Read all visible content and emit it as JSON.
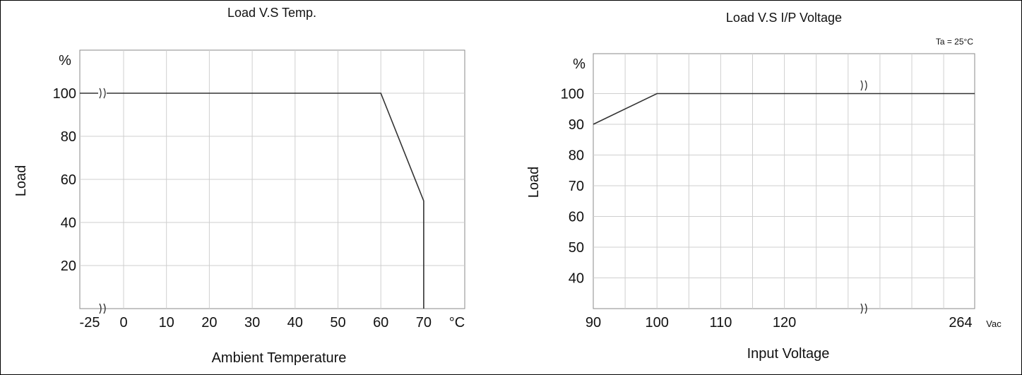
{
  "chart_data": [
    {
      "type": "line",
      "title": "Load V.S Temp.",
      "xlabel": "Ambient Temperature",
      "ylabel": "Load",
      "y_unit": "%",
      "x_unit": "°C",
      "x_ticks": [
        "-25",
        "0",
        "10",
        "20",
        "30",
        "40",
        "50",
        "60",
        "70"
      ],
      "y_ticks": [
        "20",
        "40",
        "60",
        "80",
        "100"
      ],
      "xlim": [
        -5,
        80
      ],
      "ylim": [
        0,
        120
      ],
      "axis_break_x": true,
      "axis_break_y": true,
      "grid": true,
      "series": [
        {
          "x": [
            -25,
            60,
            70,
            70
          ],
          "y": [
            100,
            100,
            50,
            0
          ]
        }
      ]
    },
    {
      "type": "line",
      "title": "Load V.S I/P Voltage",
      "annotation": "Ta = 25°C",
      "xlabel": "Input Voltage",
      "ylabel": "Load",
      "y_unit": "%",
      "x_unit": "Vac",
      "x_ticks": [
        "90",
        "100",
        "110",
        "120",
        "264"
      ],
      "y_ticks": [
        "40",
        "50",
        "60",
        "70",
        "80",
        "90",
        "100"
      ],
      "ylim": [
        30,
        105
      ],
      "axis_break_x": true,
      "grid": true,
      "series": [
        {
          "x": [
            90,
            100,
            264
          ],
          "y": [
            90,
            100,
            100
          ]
        }
      ]
    }
  ]
}
